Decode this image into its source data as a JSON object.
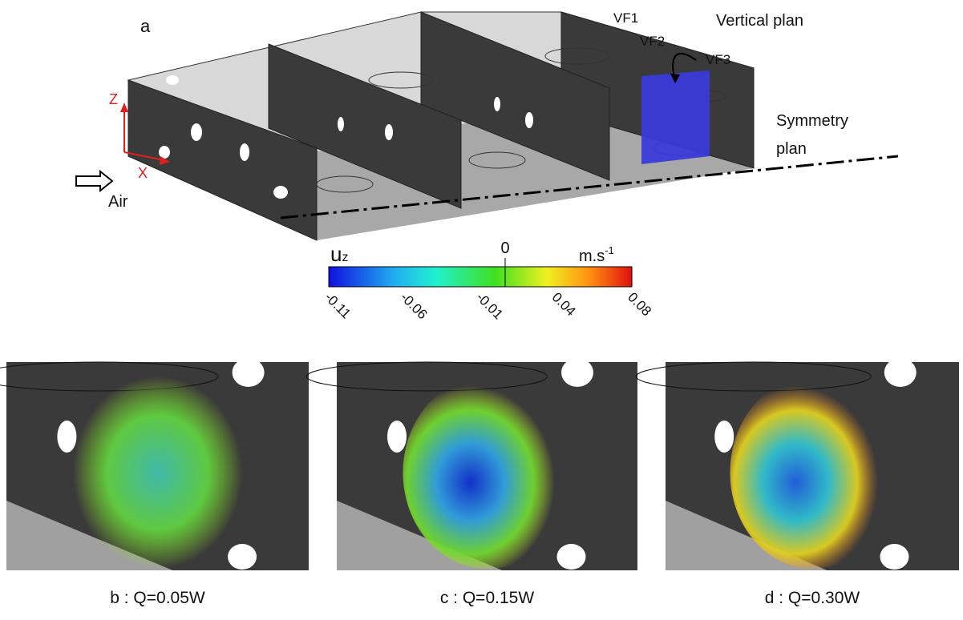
{
  "panel_a": {
    "label": "a",
    "walls": [
      "VF1",
      "VF2",
      "VF3"
    ],
    "vertical_plan": "Vertical plan",
    "symmetry_plan": [
      "Symmetry",
      "plan"
    ],
    "axes": {
      "z": "Z",
      "x": "X"
    },
    "inflow": "Air"
  },
  "colorbar": {
    "variable": "u",
    "variable_sub": "z",
    "zero": "0",
    "unit": "m.s",
    "unit_sup": "-1",
    "ticks": [
      "-0.11",
      "-0.06",
      "-0.01",
      "0.04",
      "0.08"
    ]
  },
  "panels": [
    {
      "caption": "b : Q=0.05W"
    },
    {
      "caption": "c : Q=0.15W"
    },
    {
      "caption": "d : Q=0.30W"
    }
  ]
}
